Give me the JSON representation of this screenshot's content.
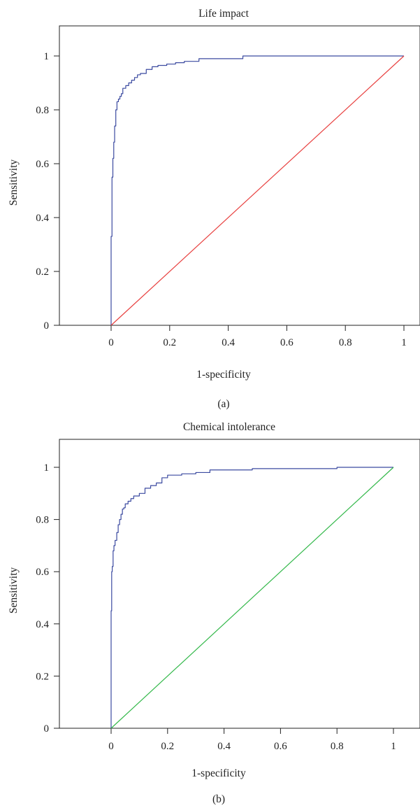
{
  "chart_data": [
    {
      "type": "line",
      "title": "Life impact",
      "xlabel": "1-specificity",
      "ylabel": "Sensitivity",
      "caption": "(a)",
      "xlim": [
        -0.18,
        1.06
      ],
      "ylim": [
        0,
        1.1
      ],
      "xticks": [
        0,
        0.2,
        0.4,
        0.6,
        0.8,
        1
      ],
      "xtick_labels": [
        "0",
        "0.2",
        "0.4",
        "0.6",
        "0.8",
        "1"
      ],
      "yticks": [
        0,
        0.2,
        0.4,
        0.6,
        0.8,
        1
      ],
      "ytick_labels": [
        "0",
        "0.2",
        "0.4",
        "0.6",
        "0.8",
        "1"
      ],
      "grid": false,
      "series": [
        {
          "color": "#3b4aa0",
          "x": [
            0,
            0,
            0.003,
            0.006,
            0.009,
            0.012,
            0.016,
            0.02,
            0.025,
            0.03,
            0.035,
            0.04,
            0.05,
            0.06,
            0.07,
            0.08,
            0.09,
            0.1,
            0.12,
            0.14,
            0.16,
            0.19,
            0.22,
            0.25,
            0.3,
            0.35,
            0.42,
            0.45,
            0.5,
            0.6,
            0.8,
            1.0
          ],
          "y": [
            0,
            0.33,
            0.55,
            0.62,
            0.68,
            0.74,
            0.8,
            0.83,
            0.84,
            0.85,
            0.86,
            0.88,
            0.89,
            0.9,
            0.91,
            0.92,
            0.93,
            0.935,
            0.95,
            0.96,
            0.965,
            0.97,
            0.975,
            0.98,
            0.99,
            0.99,
            0.99,
            1.0,
            1.0,
            1.0,
            1.0,
            1.0
          ]
        },
        {
          "color": "#e8403f",
          "x": [
            0,
            1
          ],
          "y": [
            0,
            1
          ]
        }
      ]
    },
    {
      "type": "line",
      "title": "Chemical intolerance",
      "xlabel": "1-specificity",
      "ylabel": "Sensitivity",
      "caption": "(b)",
      "xlim": [
        -0.18,
        1.02
      ],
      "ylim": [
        0,
        1.1
      ],
      "xticks": [
        0,
        0.2,
        0.4,
        0.6,
        0.8,
        1
      ],
      "xtick_labels": [
        "0",
        "0.2",
        "0.4",
        "0.6",
        "0.8",
        "1"
      ],
      "yticks": [
        0,
        0.2,
        0.4,
        0.6,
        0.8,
        1
      ],
      "ytick_labels": [
        "0",
        "0.2",
        "0.4",
        "0.6",
        "0.8",
        "1"
      ],
      "grid": false,
      "series": [
        {
          "color": "#3b4aa0",
          "x": [
            0,
            0,
            0.002,
            0.004,
            0.007,
            0.01,
            0.014,
            0.02,
            0.025,
            0.03,
            0.035,
            0.04,
            0.045,
            0.05,
            0.06,
            0.07,
            0.08,
            0.1,
            0.12,
            0.14,
            0.16,
            0.18,
            0.2,
            0.25,
            0.3,
            0.35,
            0.4,
            0.47,
            0.5,
            0.6,
            0.75,
            0.8,
            1.0
          ],
          "y": [
            0,
            0.45,
            0.6,
            0.62,
            0.68,
            0.7,
            0.72,
            0.75,
            0.78,
            0.8,
            0.82,
            0.84,
            0.845,
            0.86,
            0.87,
            0.88,
            0.89,
            0.9,
            0.92,
            0.93,
            0.94,
            0.96,
            0.97,
            0.975,
            0.98,
            0.99,
            0.99,
            0.99,
            0.995,
            0.995,
            0.995,
            1.0,
            1.0
          ]
        },
        {
          "color": "#33b84a",
          "x": [
            0,
            1
          ],
          "y": [
            0,
            1
          ]
        }
      ]
    }
  ]
}
